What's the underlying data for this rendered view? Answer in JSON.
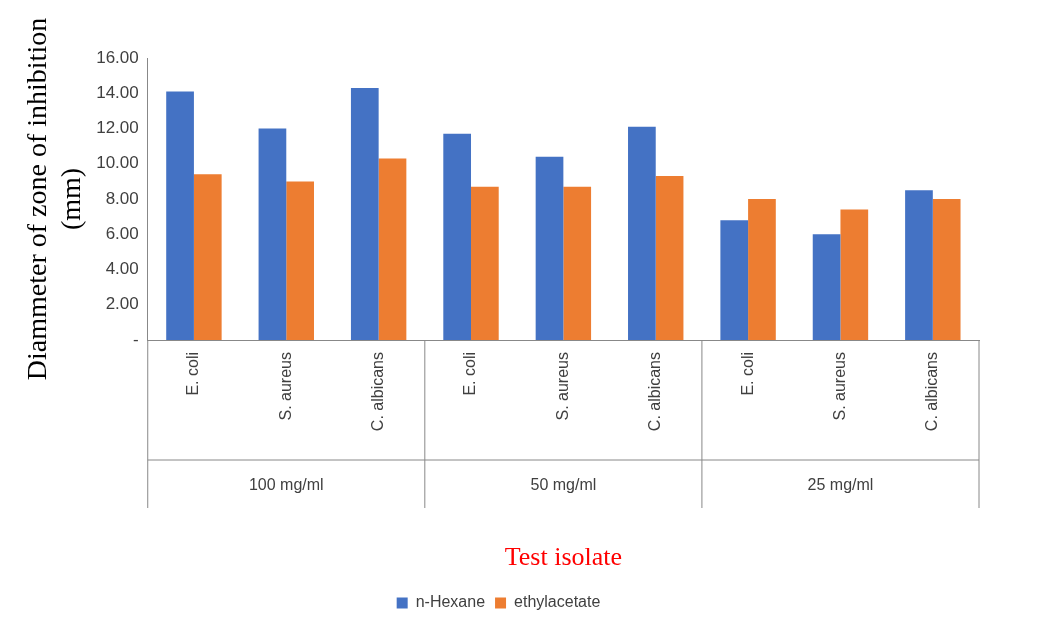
{
  "chart_data": {
    "type": "bar",
    "xlabel": "Test isolate",
    "ylabel": "Diammeter of zone of inhibition (mm)",
    "categories": [
      "E. coli",
      "S. aureus",
      "C. albicans",
      "E. coli",
      "S. aureus",
      "C. albicans",
      "E. coli",
      "S. aureus",
      "C. albicans"
    ],
    "annotations": [
      "100 mg/ml",
      "50 mg/ml",
      "25 mg/ml"
    ],
    "series": [
      {
        "name": "n-Hexane",
        "color": "#4472c4",
        "values": [
          14.1,
          12.0,
          14.3,
          11.7,
          10.4,
          12.1,
          6.8,
          6.0,
          8.5
        ]
      },
      {
        "name": "ethylacetate",
        "color": "#ed7d31",
        "values": [
          9.4,
          9.0,
          10.3,
          8.7,
          8.7,
          9.3,
          8.0,
          7.4,
          8.0
        ]
      }
    ],
    "ylim": [
      0,
      16
    ],
    "yticks": [
      {
        "value": 0,
        "label": "-"
      },
      {
        "value": 2,
        "label": "2.00"
      },
      {
        "value": 4,
        "label": "4.00"
      },
      {
        "value": 6,
        "label": "6.00"
      },
      {
        "value": 8,
        "label": "8.00"
      },
      {
        "value": 10,
        "label": "10.00"
      },
      {
        "value": 12,
        "label": "12.00"
      },
      {
        "value": 14,
        "label": "14.00"
      },
      {
        "value": 16,
        "label": "16.00"
      }
    ],
    "grid": false,
    "legend": "bottom"
  }
}
